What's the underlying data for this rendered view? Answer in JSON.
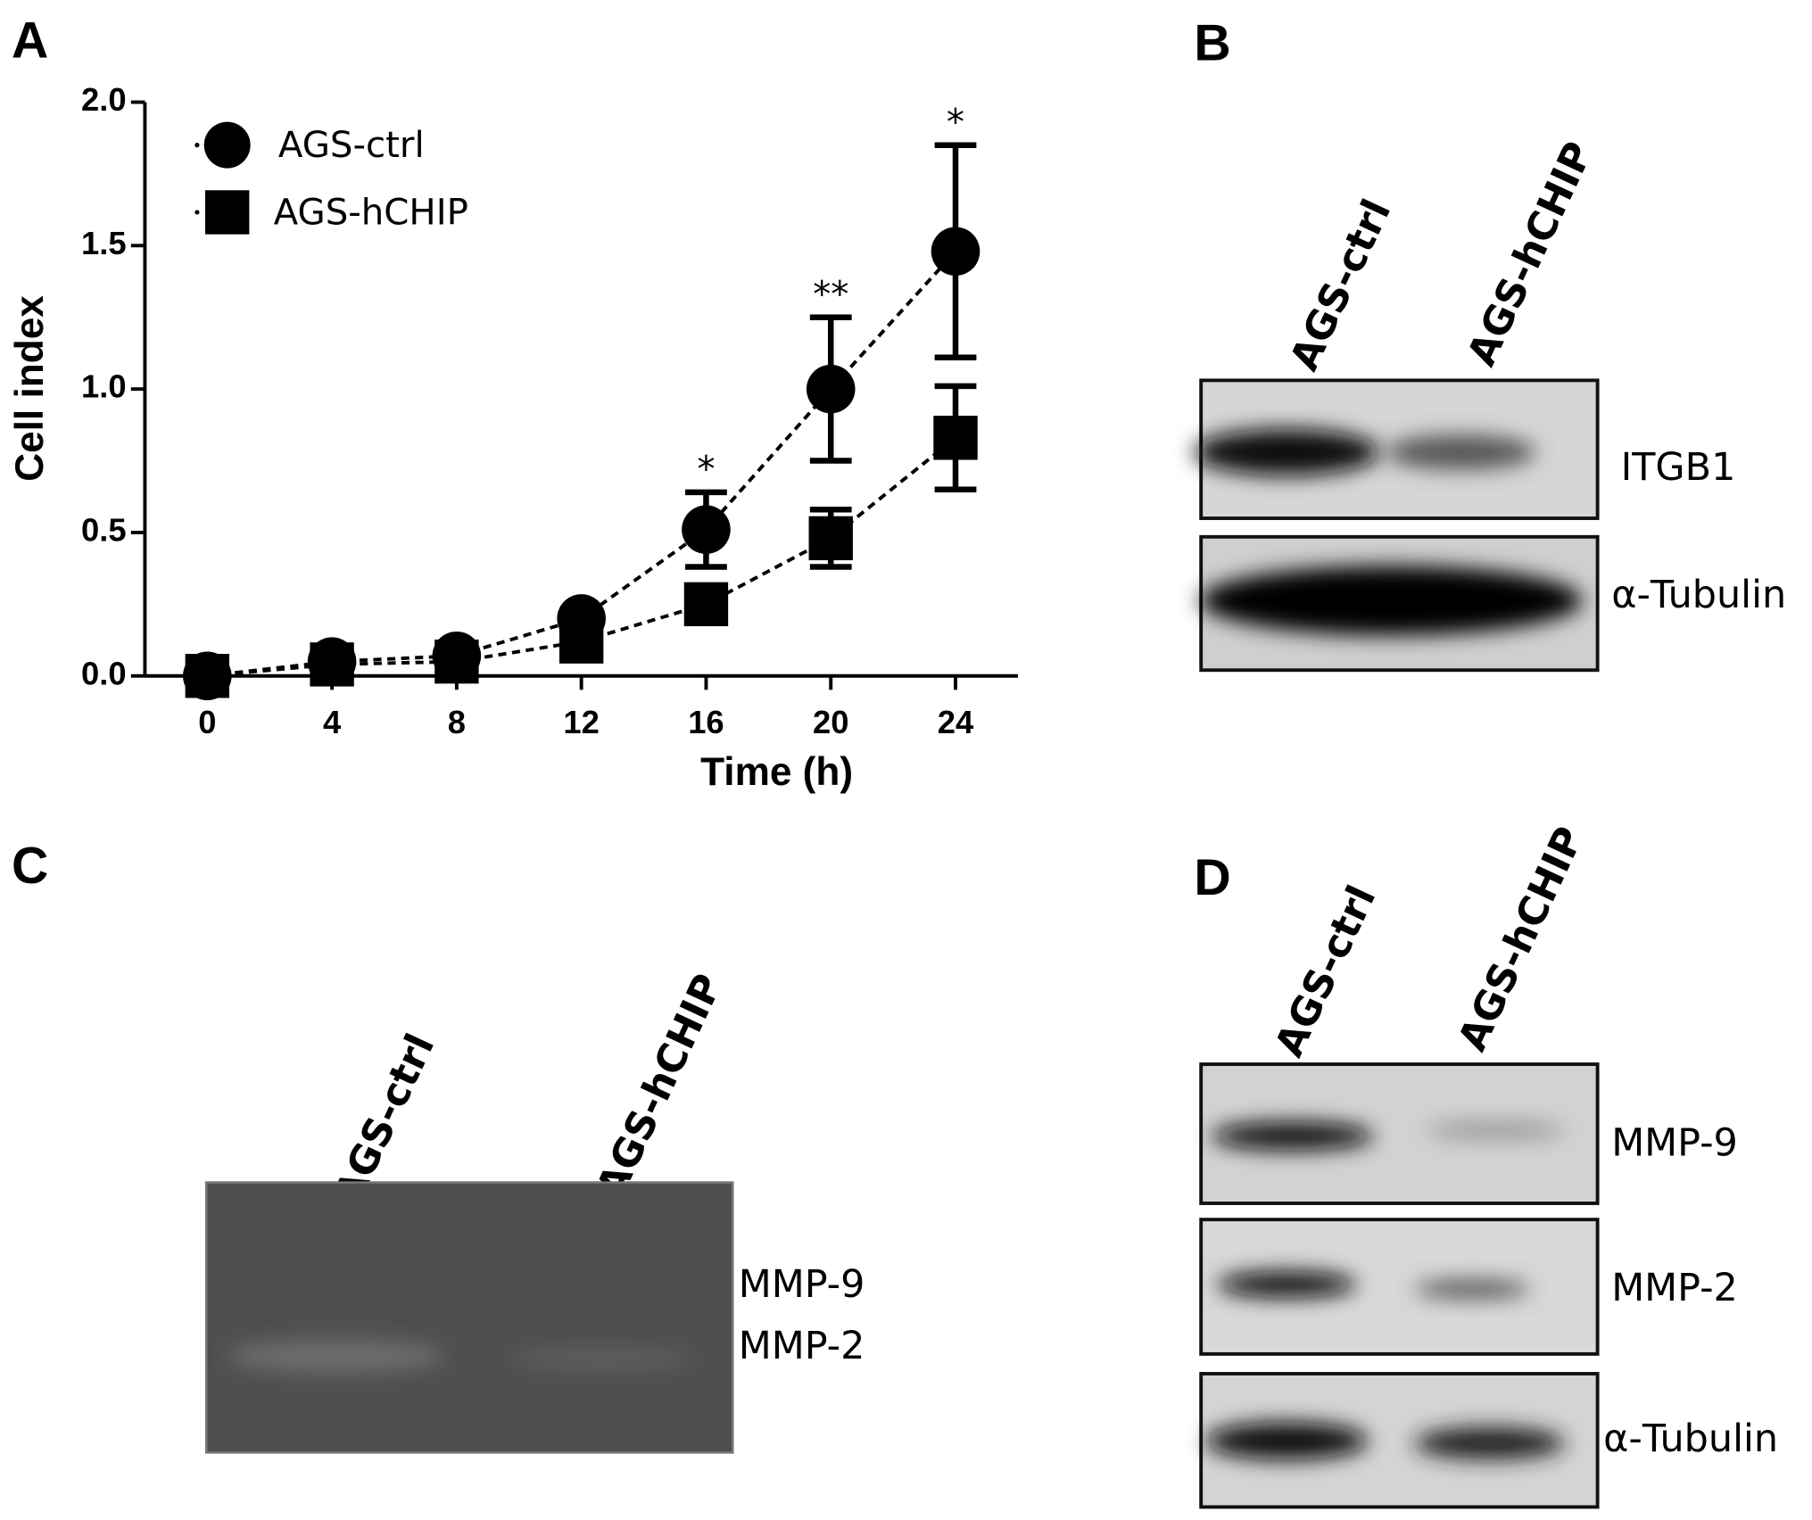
{
  "panel_labels": [
    "A",
    "B",
    "C",
    "D"
  ],
  "chart_data": {
    "type": "line",
    "x_label": "Time (h)",
    "y_label": "Cell index",
    "x": [
      0,
      4,
      8,
      12,
      16,
      20,
      24
    ],
    "series": [
      {
        "name": "AGS-ctrl",
        "color": "#000000",
        "marker": "circle",
        "values": [
          0,
          0.05,
          0.07,
          0.2,
          0.51,
          1.0,
          1.48
        ],
        "errors": [
          0,
          0.01,
          0.01,
          0.02,
          0.13,
          0.25,
          0.37
        ]
      },
      {
        "name": "AGS-hCHIP",
        "color": "#000000",
        "marker": "square",
        "values": [
          0,
          0.04,
          0.05,
          0.12,
          0.25,
          0.48,
          0.83
        ],
        "errors": [
          0,
          0.01,
          0.01,
          0.02,
          0.03,
          0.1,
          0.18
        ]
      }
    ],
    "annotations": [
      {
        "x": 16,
        "text": "*"
      },
      {
        "x": 20,
        "text": "**"
      },
      {
        "x": 24,
        "text": "*"
      }
    ],
    "xlim": [
      -2,
      26
    ],
    "xticks": [
      0,
      4,
      8,
      12,
      16,
      20,
      24
    ],
    "ylim": [
      0,
      2
    ],
    "yticks": [
      {
        "value": 0,
        "label": "0.0"
      },
      0.5,
      {
        "value": 1,
        "label": "1.0"
      },
      1.5,
      {
        "value": 2,
        "label": "2.0"
      }
    ],
    "grid": false,
    "legend": "upper left"
  },
  "blot_B": {
    "lanes": [
      "AGS-ctrl",
      "AGS-hCHIP"
    ],
    "bands": [
      "ITGB1",
      "α-Tubulin"
    ]
  },
  "zymogram_C": {
    "lanes": [
      "AGS-ctrl",
      "AGS-hCHIP"
    ],
    "bands": [
      "MMP-9",
      "MMP-2"
    ]
  },
  "blot_D": {
    "lanes": [
      "AGS-ctrl",
      "AGS-hCHIP"
    ],
    "bands": [
      "MMP-9",
      "MMP-2",
      "α-Tubulin"
    ]
  }
}
